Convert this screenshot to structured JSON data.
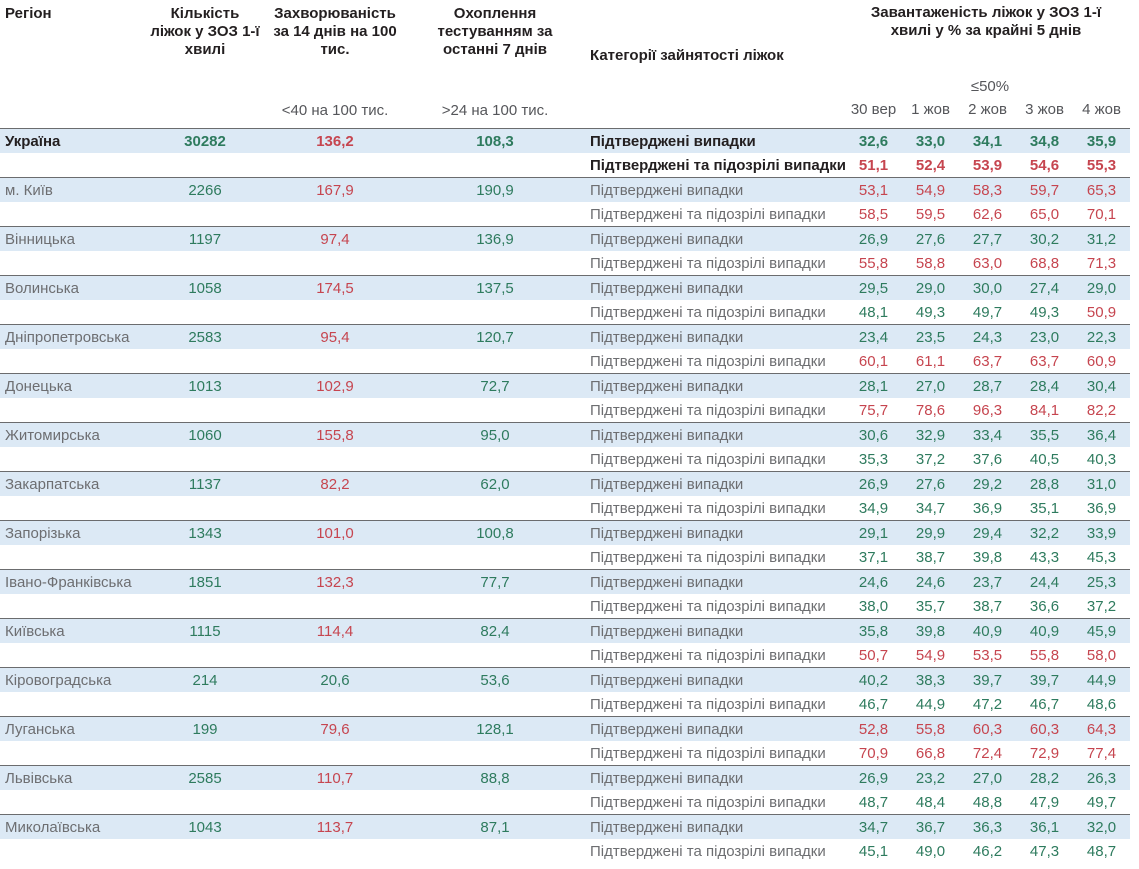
{
  "header": {
    "region": "Регіон",
    "beds": "Кількість ліжок у ЗОЗ 1-ї хвилі",
    "incidence": "Захворюваність за 14 днів на 100 тис.",
    "testing": "Охоплення тестуванням за останні 7 днів",
    "category": "Категорії зайнятості ліжок",
    "occupancy": "Завантаженість ліжок у ЗОЗ 1-ї хвилі у % за крайні 5 днів",
    "incidence_threshold_label": "<40 на 100 тис.",
    "testing_threshold_label": ">24 на 100 тис.",
    "occupancy_threshold_label": "≤50%",
    "dates": [
      "30 вер",
      "1 жов",
      "2 жов",
      "3 жов",
      "4 жов"
    ]
  },
  "row_labels": {
    "confirmed": "Підтверджені випадки",
    "confirmed_suspected": "Підтверджені та підозрілі випадки"
  },
  "thresholds": {
    "incidence_green_below": 40,
    "testing_green_above": 24,
    "occupancy_green_max": 50
  },
  "colors": {
    "positive_green": "#2e7b5e",
    "negative_red": "#c6454f",
    "row_highlight_blue": "#dce9f5",
    "block_border_gray": "#6b6c6e",
    "label_gray": "#6d6e71",
    "text_dark": "#231f20"
  },
  "regions": [
    {
      "name": "Україна",
      "national": true,
      "beds": "30282",
      "incidence": "136,2",
      "testing": "108,3",
      "confirmed": [
        "32,6",
        "33,0",
        "34,1",
        "34,8",
        "35,9"
      ],
      "confirmed_suspected": [
        "51,1",
        "52,4",
        "53,9",
        "54,6",
        "55,3"
      ]
    },
    {
      "name": "м. Київ",
      "beds": "2266",
      "incidence": "167,9",
      "testing": "190,9",
      "confirmed": [
        "53,1",
        "54,9",
        "58,3",
        "59,7",
        "65,3"
      ],
      "confirmed_suspected": [
        "58,5",
        "59,5",
        "62,6",
        "65,0",
        "70,1"
      ]
    },
    {
      "name": "Вінницька",
      "beds": "1197",
      "incidence": "97,4",
      "testing": "136,9",
      "confirmed": [
        "26,9",
        "27,6",
        "27,7",
        "30,2",
        "31,2"
      ],
      "confirmed_suspected": [
        "55,8",
        "58,8",
        "63,0",
        "68,8",
        "71,3"
      ]
    },
    {
      "name": "Волинська",
      "beds": "1058",
      "incidence": "174,5",
      "testing": "137,5",
      "confirmed": [
        "29,5",
        "29,0",
        "30,0",
        "27,4",
        "29,0"
      ],
      "confirmed_suspected": [
        "48,1",
        "49,3",
        "49,7",
        "49,3",
        "50,9"
      ]
    },
    {
      "name": "Дніпропетровська",
      "beds": "2583",
      "incidence": "95,4",
      "testing": "120,7",
      "confirmed": [
        "23,4",
        "23,5",
        "24,3",
        "23,0",
        "22,3"
      ],
      "confirmed_suspected": [
        "60,1",
        "61,1",
        "63,7",
        "63,7",
        "60,9"
      ]
    },
    {
      "name": "Донецька",
      "beds": "1013",
      "incidence": "102,9",
      "testing": "72,7",
      "confirmed": [
        "28,1",
        "27,0",
        "28,7",
        "28,4",
        "30,4"
      ],
      "confirmed_suspected": [
        "75,7",
        "78,6",
        "96,3",
        "84,1",
        "82,2"
      ]
    },
    {
      "name": "Житомирська",
      "beds": "1060",
      "incidence": "155,8",
      "testing": "95,0",
      "confirmed": [
        "30,6",
        "32,9",
        "33,4",
        "35,5",
        "36,4"
      ],
      "confirmed_suspected": [
        "35,3",
        "37,2",
        "37,6",
        "40,5",
        "40,3"
      ]
    },
    {
      "name": "Закарпатська",
      "beds": "1137",
      "incidence": "82,2",
      "testing": "62,0",
      "confirmed": [
        "26,9",
        "27,6",
        "29,2",
        "28,8",
        "31,0"
      ],
      "confirmed_suspected": [
        "34,9",
        "34,7",
        "36,9",
        "35,1",
        "36,9"
      ]
    },
    {
      "name": "Запорізька",
      "beds": "1343",
      "incidence": "101,0",
      "testing": "100,8",
      "confirmed": [
        "29,1",
        "29,9",
        "29,4",
        "32,2",
        "33,9"
      ],
      "confirmed_suspected": [
        "37,1",
        "38,7",
        "39,8",
        "43,3",
        "45,3"
      ]
    },
    {
      "name": "Івано-Франківська",
      "beds": "1851",
      "incidence": "132,3",
      "testing": "77,7",
      "confirmed": [
        "24,6",
        "24,6",
        "23,7",
        "24,4",
        "25,3"
      ],
      "confirmed_suspected": [
        "38,0",
        "35,7",
        "38,7",
        "36,6",
        "37,2"
      ]
    },
    {
      "name": "Київська",
      "beds": "1115",
      "incidence": "114,4",
      "testing": "82,4",
      "confirmed": [
        "35,8",
        "39,8",
        "40,9",
        "40,9",
        "45,9"
      ],
      "confirmed_suspected": [
        "50,7",
        "54,9",
        "53,5",
        "55,8",
        "58,0"
      ]
    },
    {
      "name": "Кіровоградська",
      "beds": "214",
      "incidence": "20,6",
      "testing": "53,6",
      "confirmed": [
        "40,2",
        "38,3",
        "39,7",
        "39,7",
        "44,9"
      ],
      "confirmed_suspected": [
        "46,7",
        "44,9",
        "47,2",
        "46,7",
        "48,6"
      ]
    },
    {
      "name": "Луганська",
      "beds": "199",
      "incidence": "79,6",
      "testing": "128,1",
      "confirmed": [
        "52,8",
        "55,8",
        "60,3",
        "60,3",
        "64,3"
      ],
      "confirmed_suspected": [
        "70,9",
        "66,8",
        "72,4",
        "72,9",
        "77,4"
      ]
    },
    {
      "name": "Львівська",
      "beds": "2585",
      "incidence": "110,7",
      "testing": "88,8",
      "confirmed": [
        "26,9",
        "23,2",
        "27,0",
        "28,2",
        "26,3"
      ],
      "confirmed_suspected": [
        "48,7",
        "48,4",
        "48,8",
        "47,9",
        "49,7"
      ]
    },
    {
      "name": "Миколаївська",
      "beds": "1043",
      "incidence": "113,7",
      "testing": "87,1",
      "confirmed": [
        "34,7",
        "36,7",
        "36,3",
        "36,1",
        "32,0"
      ],
      "confirmed_suspected": [
        "45,1",
        "49,0",
        "46,2",
        "47,3",
        "48,7"
      ]
    }
  ]
}
